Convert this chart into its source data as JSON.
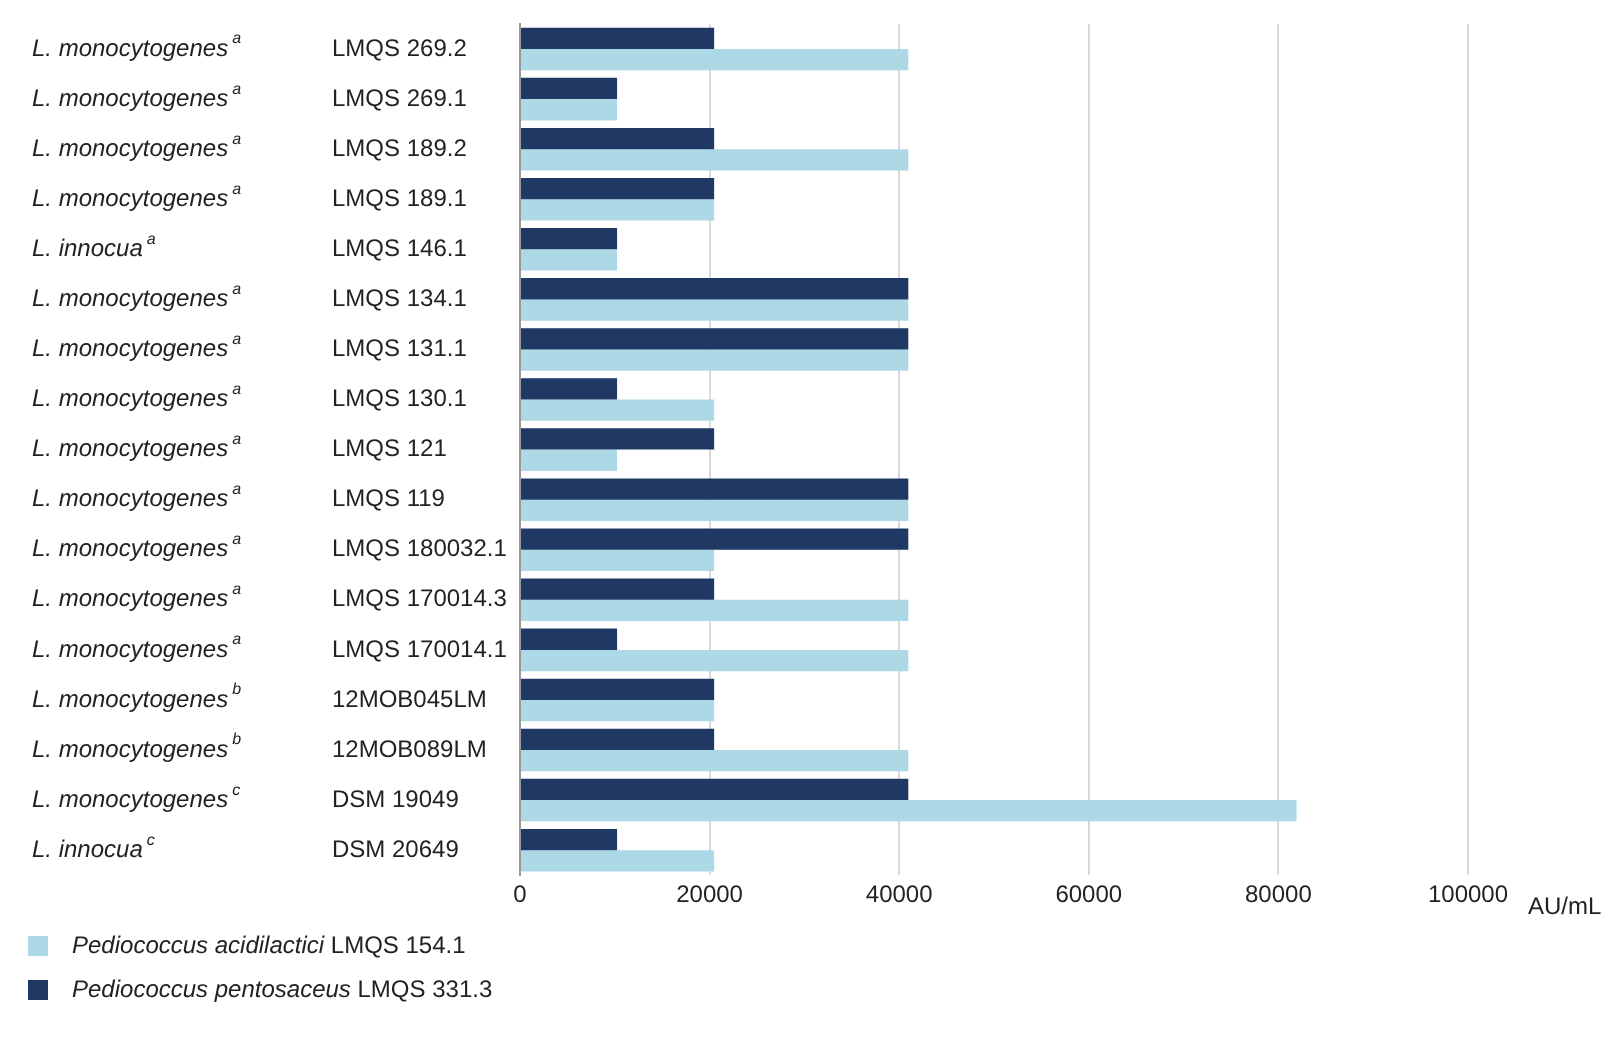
{
  "chart_data": {
    "type": "bar",
    "orientation": "horizontal",
    "xlabel": "AU/mL",
    "categories": [
      "L. monocytogenes$^{a}$ LMQS 269.2",
      "L. monocytogenes$^{a}$ LMQS 269.1",
      "L. monocytogenes$^{a}$ LMQS 189.2",
      "L. monocytogenes$^{a}$ LMQS 189.1",
      "L. innocua$^{a}$ LMQS 146.1",
      "L. monocytogenes$^{a}$ LMQS 134.1",
      "L. monocytogenes$^{a}$ LMQS 131.1",
      "L. monocytogenes$^{a}$ LMQS 130.1",
      "L. monocytogenes$^{a}$ LMQS 121",
      "L. monocytogenes$^{a}$ LMQS 119",
      "L. monocytogenes$^{a}$ LMQS 180032.1",
      "L. monocytogenes$^{a}$ LMQS 170014.3",
      "L. monocytogenes$^{a}$ LMQS 170014.1",
      "L. monocytogenes$^{b}$ 12MOB045LM",
      "L. monocytogenes$^{b}$ 12MOB089LM",
      "L. monocytogenes$^{c}$ DSM 19049",
      "L. innocua$^{c}$ DSM 20649"
    ],
    "series": [
      {
        "name": "Pediococcus acidilactici LMQS 154.1",
        "color": "#add8e6",
        "values": [
          40960,
          10240,
          40960,
          20480,
          10240,
          40960,
          40960,
          20480,
          10240,
          40960,
          20480,
          40960,
          40960,
          20480,
          40960,
          81920,
          20480
        ]
      },
      {
        "name": "Pediococcus pentosaceus LMQS 331.3",
        "color": "#1f3864",
        "values": [
          20480,
          10240,
          20480,
          20480,
          10240,
          40960,
          40960,
          10240,
          20480,
          40960,
          40960,
          20480,
          10240,
          20480,
          20480,
          40960,
          10240
        ]
      }
    ],
    "xlim": [
      0,
      100000
    ],
    "xticks": [
      0,
      20000,
      40000,
      60000,
      80000,
      100000
    ],
    "grid": "x",
    "legend": "bottom left"
  }
}
